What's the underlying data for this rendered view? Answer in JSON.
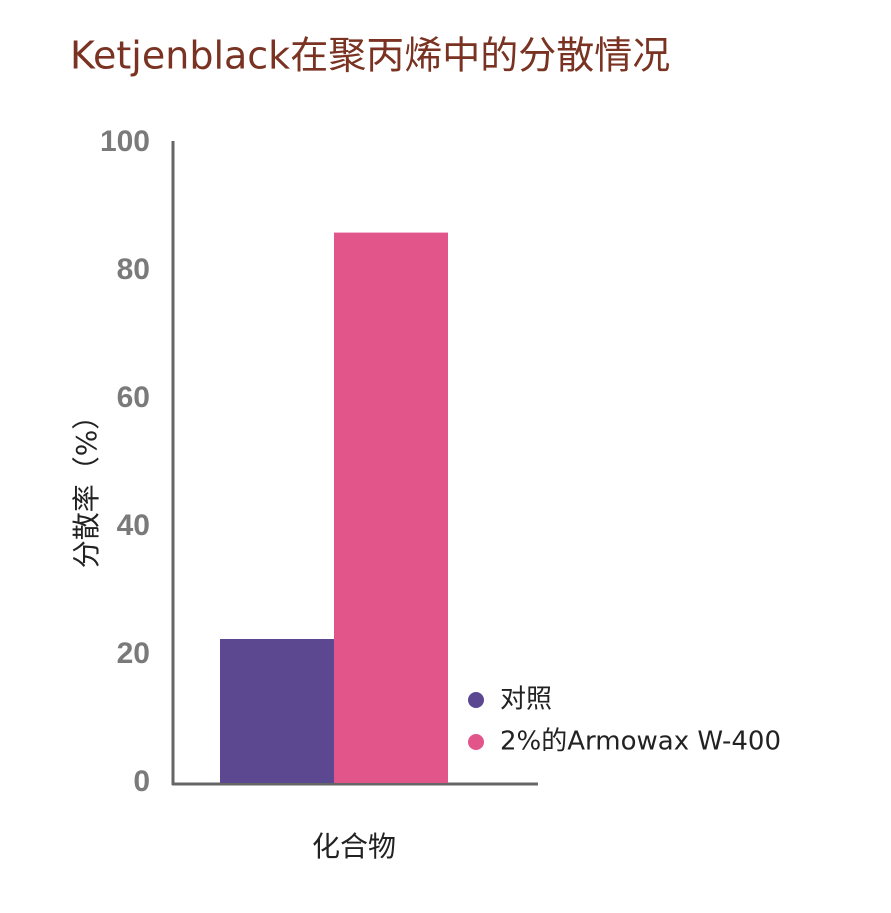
{
  "chart_data": {
    "type": "bar",
    "title": "Ketjenblack在聚丙烯中的分散情况",
    "y_label": "分散率（%）",
    "categories": [
      "化合物"
    ],
    "series": [
      {
        "name": "对照",
        "color": "#5b4891",
        "values": [
          22.5
        ]
      },
      {
        "name": "2%的Armowax W-400",
        "color": "#e2558b",
        "values": [
          86
        ]
      }
    ],
    "ylim": [
      0,
      100
    ],
    "yticks": [
      0,
      20,
      40,
      60,
      80,
      100
    ],
    "grid": false
  }
}
